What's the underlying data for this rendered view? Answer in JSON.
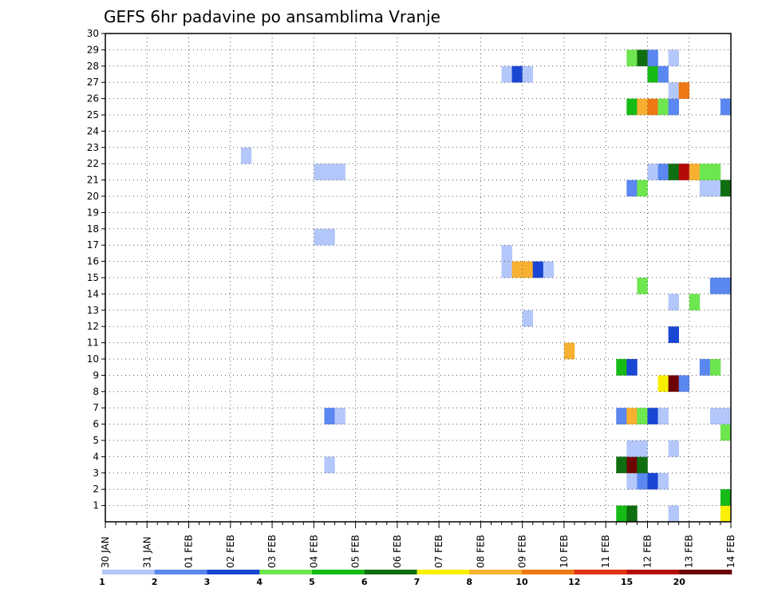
{
  "chart_data": {
    "type": "heatmap",
    "title": "GEFS 6hr padavine po ansamblima Vranje",
    "xlabel": "",
    "ylabel": "",
    "x_tick_labels": [
      "30 JAN",
      "31 JAN",
      "01 FEB",
      "02 FEB",
      "03 FEB",
      "04 FEB",
      "05 FEB",
      "06 FEB",
      "07 FEB",
      "08 FEB",
      "09 FEB",
      "10 FEB",
      "11 FEB",
      "12 FEB",
      "13 FEB",
      "14 FEB"
    ],
    "y_tick_labels": [
      "1",
      "2",
      "3",
      "4",
      "5",
      "6",
      "7",
      "8",
      "9",
      "10",
      "11",
      "12",
      "13",
      "14",
      "15",
      "16",
      "17",
      "18",
      "19",
      "20",
      "21",
      "22",
      "23",
      "24",
      "25",
      "26",
      "27",
      "28",
      "29",
      "30"
    ],
    "x_unit": "6h steps from 30 JAN 00Z",
    "xlim": [
      0,
      60
    ],
    "ylim": [
      0,
      30
    ],
    "grid": true,
    "legend_position": "bottom",
    "levels": [
      "1",
      "2",
      "3",
      "4",
      "5",
      "6",
      "7",
      "8",
      "10",
      "12",
      "15",
      "20"
    ],
    "colors": [
      "#b4c7fa",
      "#5a87f0",
      "#1a46d4",
      "#6ee650",
      "#16bb16",
      "#0f6e0f",
      "#f8f000",
      "#f8b030",
      "#f07813",
      "#e03214",
      "#b40a0a",
      "#6e0505"
    ],
    "cells": [
      [
        49,
        0,
        4
      ],
      [
        50,
        0,
        5
      ],
      [
        54,
        0,
        0
      ],
      [
        59,
        0,
        6
      ],
      [
        59,
        1,
        4
      ],
      [
        50,
        2,
        0
      ],
      [
        51,
        2,
        1
      ],
      [
        52,
        2,
        2
      ],
      [
        53,
        2,
        0
      ],
      [
        21,
        3,
        0
      ],
      [
        49,
        3,
        5
      ],
      [
        50,
        3,
        11
      ],
      [
        51,
        3,
        5
      ],
      [
        50,
        4,
        0
      ],
      [
        51,
        4,
        0
      ],
      [
        54,
        4,
        0
      ],
      [
        59,
        5,
        3
      ],
      [
        21,
        6,
        1
      ],
      [
        22,
        6,
        0
      ],
      [
        49,
        6,
        1
      ],
      [
        50,
        6,
        7
      ],
      [
        51,
        6,
        3
      ],
      [
        52,
        6,
        2
      ],
      [
        53,
        6,
        0
      ],
      [
        58,
        6,
        0
      ],
      [
        59,
        6,
        0
      ],
      [
        53,
        8,
        6
      ],
      [
        54,
        8,
        11
      ],
      [
        55,
        8,
        1
      ],
      [
        49,
        9,
        4
      ],
      [
        50,
        9,
        2
      ],
      [
        57,
        9,
        1
      ],
      [
        58,
        9,
        3
      ],
      [
        44,
        10,
        7
      ],
      [
        54,
        11,
        2
      ],
      [
        40,
        12,
        0
      ],
      [
        54,
        13,
        0
      ],
      [
        56,
        13,
        3
      ],
      [
        51,
        14,
        3
      ],
      [
        58,
        14,
        1
      ],
      [
        59,
        14,
        1
      ],
      [
        38,
        15,
        0
      ],
      [
        39,
        15,
        7
      ],
      [
        40,
        15,
        7
      ],
      [
        41,
        15,
        2
      ],
      [
        42,
        15,
        0
      ],
      [
        38,
        16,
        0
      ],
      [
        20,
        17,
        0
      ],
      [
        21,
        17,
        0
      ],
      [
        50,
        20,
        1
      ],
      [
        51,
        20,
        3
      ],
      [
        57,
        20,
        0
      ],
      [
        58,
        20,
        0
      ],
      [
        59,
        20,
        5
      ],
      [
        20,
        21,
        0
      ],
      [
        21,
        21,
        0
      ],
      [
        22,
        21,
        0
      ],
      [
        52,
        21,
        0
      ],
      [
        53,
        21,
        1
      ],
      [
        54,
        21,
        5
      ],
      [
        55,
        21,
        10
      ],
      [
        56,
        21,
        7
      ],
      [
        57,
        21,
        3
      ],
      [
        58,
        21,
        3
      ],
      [
        13,
        22,
        0
      ],
      [
        50,
        25,
        4
      ],
      [
        51,
        25,
        7
      ],
      [
        52,
        25,
        8
      ],
      [
        53,
        25,
        3
      ],
      [
        54,
        25,
        1
      ],
      [
        59,
        25,
        1
      ],
      [
        54,
        26,
        0
      ],
      [
        55,
        26,
        8
      ],
      [
        38,
        27,
        0
      ],
      [
        39,
        27,
        2
      ],
      [
        40,
        27,
        0
      ],
      [
        52,
        27,
        4
      ],
      [
        53,
        27,
        1
      ],
      [
        50,
        28,
        3
      ],
      [
        51,
        28,
        5
      ],
      [
        52,
        28,
        1
      ],
      [
        54,
        28,
        0
      ]
    ]
  }
}
